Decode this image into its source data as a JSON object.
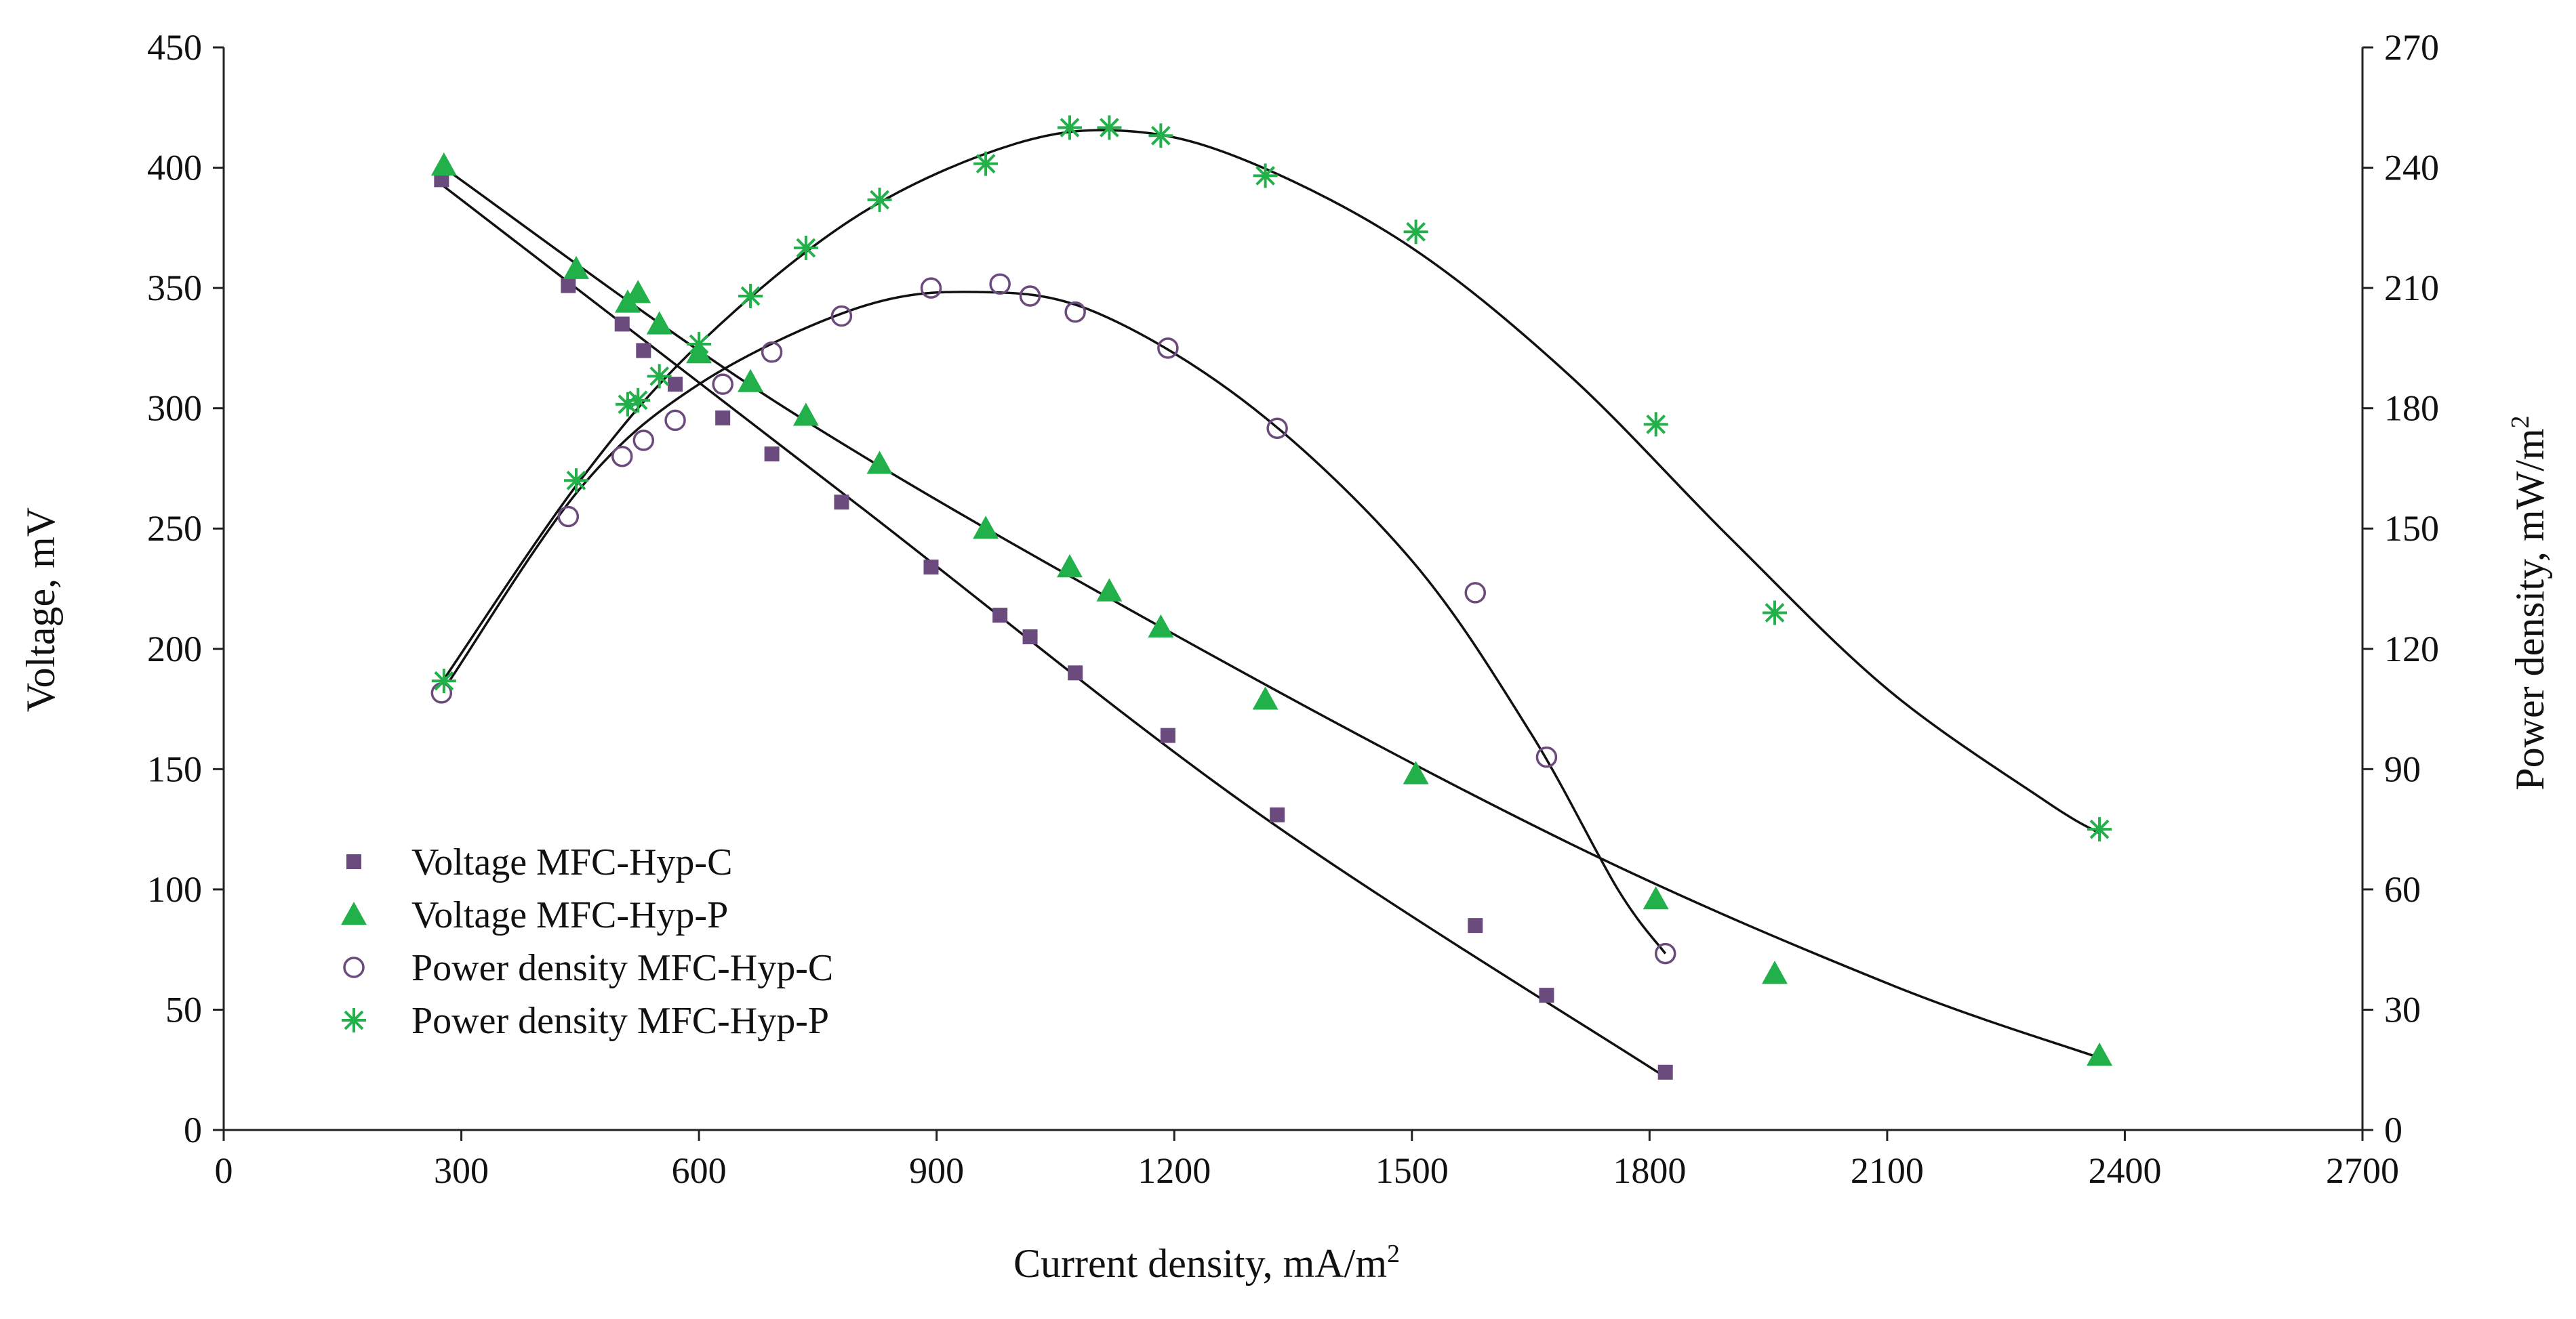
{
  "chart_data": {
    "type": "scatter",
    "title": "",
    "xlabel": "Current  density, mA/m",
    "xlabel_sup": "2",
    "ylabel": "Voltage, mV",
    "y2label": "Power density, mW/m",
    "y2label_sup": "2",
    "xlim": [
      0,
      2700
    ],
    "ylim": [
      0,
      450
    ],
    "y2lim": [
      0,
      270
    ],
    "xticks": [
      0,
      300,
      600,
      900,
      1200,
      1500,
      1800,
      2100,
      2400,
      2700
    ],
    "yticks": [
      0,
      50,
      100,
      150,
      200,
      250,
      300,
      350,
      400,
      450
    ],
    "y2ticks": [
      0,
      30,
      60,
      90,
      120,
      150,
      180,
      210,
      240,
      270
    ],
    "grid": false,
    "legend_position": "bottom-left",
    "series": [
      {
        "name": "Voltage MFC-Hyp-C",
        "axis": "left",
        "marker": "square",
        "color": "#6b4a7e",
        "x": [
          275,
          435,
          503,
          530,
          570,
          630,
          692,
          780,
          893,
          980,
          1018,
          1075,
          1192,
          1330,
          1580,
          1670,
          1820
        ],
        "y": [
          395,
          351,
          335,
          324,
          310,
          296,
          281,
          261,
          234,
          214,
          205,
          190,
          164,
          131,
          85,
          56,
          24
        ],
        "fit": [
          [
            275,
            393
          ],
          [
            800,
            260
          ],
          [
            1300,
            133
          ],
          [
            1820,
            22
          ]
        ]
      },
      {
        "name": "Voltage MFC-Hyp-P",
        "axis": "left",
        "marker": "triangle",
        "color": "#22b04a",
        "x": [
          278,
          445,
          510,
          523,
          550,
          600,
          665,
          735,
          828,
          962,
          1068,
          1118,
          1183,
          1315,
          1505,
          1808,
          1958,
          2368
        ],
        "y": [
          401,
          358,
          344,
          348,
          335,
          323,
          311,
          297,
          277,
          250,
          234,
          224,
          209,
          179,
          148,
          96,
          65,
          31
        ],
        "fit": [
          [
            278,
            400
          ],
          [
            700,
            302
          ],
          [
            1200,
            206
          ],
          [
            1700,
            119
          ],
          [
            2100,
            61
          ],
          [
            2368,
            30
          ]
        ]
      },
      {
        "name": "Power density MFC-Hyp-C",
        "axis": "right",
        "marker": "circle",
        "color": "#6b4a7e",
        "x": [
          275,
          435,
          503,
          530,
          570,
          630,
          692,
          780,
          893,
          980,
          1018,
          1075,
          1192,
          1330,
          1580,
          1670,
          1820
        ],
        "y": [
          109,
          153,
          168,
          172,
          177,
          186,
          194,
          203,
          210,
          211,
          208,
          204,
          195,
          175,
          134,
          93,
          44
        ],
        "fit": [
          [
            285,
            112
          ],
          [
            450,
            160
          ],
          [
            600,
            186
          ],
          [
            800,
            205
          ],
          [
            950,
            209
          ],
          [
            1100,
            204
          ],
          [
            1300,
            180
          ],
          [
            1500,
            142
          ],
          [
            1650,
            99
          ],
          [
            1760,
            60
          ],
          [
            1820,
            44
          ]
        ]
      },
      {
        "name": "Power density MFC-Hyp-P",
        "axis": "right",
        "marker": "star",
        "color": "#22b04a",
        "x": [
          278,
          445,
          510,
          523,
          550,
          600,
          665,
          735,
          828,
          962,
          1068,
          1118,
          1183,
          1315,
          1505,
          1808,
          1958,
          2368
        ],
        "y": [
          112,
          162,
          181,
          182,
          188,
          196,
          208,
          220,
          232,
          241,
          250,
          250,
          248,
          238,
          224,
          176,
          129,
          75
        ],
        "fit": [
          [
            280,
            113
          ],
          [
            450,
            162
          ],
          [
            600,
            196
          ],
          [
            800,
            228
          ],
          [
            1000,
            246
          ],
          [
            1150,
            249
          ],
          [
            1300,
            241
          ],
          [
            1500,
            220
          ],
          [
            1700,
            188
          ],
          [
            1900,
            148
          ],
          [
            2100,
            110
          ],
          [
            2300,
            82
          ],
          [
            2368,
            74
          ]
        ]
      }
    ]
  }
}
